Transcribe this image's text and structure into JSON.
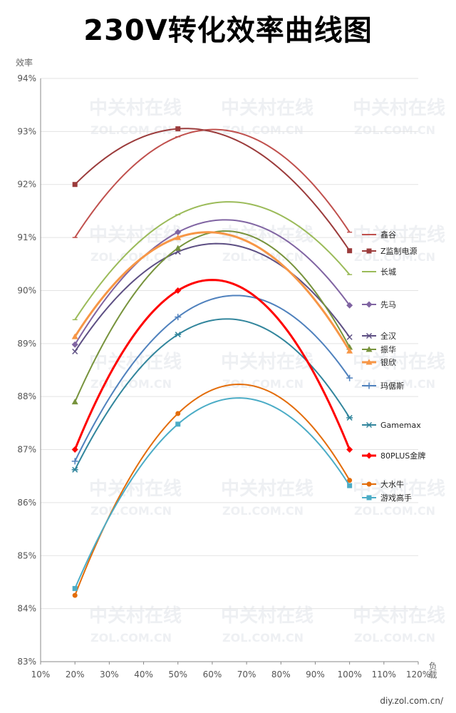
{
  "chart_data": {
    "type": "line",
    "title": "230V转化效率曲线图",
    "ylabel": "效率",
    "xlabel": "负载",
    "xlim": [
      10,
      120
    ],
    "ylim": [
      83,
      94
    ],
    "x_ticks": [
      "10%",
      "20%",
      "30%",
      "40%",
      "50%",
      "60%",
      "70%",
      "80%",
      "90%",
      "100%",
      "110%",
      "120%"
    ],
    "y_ticks": [
      "83%",
      "84%",
      "85%",
      "86%",
      "87%",
      "88%",
      "89%",
      "90%",
      "91%",
      "92%",
      "93%",
      "94%"
    ],
    "x": [
      20,
      50,
      100
    ],
    "series": [
      {
        "name": "鑫谷",
        "values": [
          91.0,
          92.9,
          91.1
        ],
        "color": "#c0504d",
        "marker": "dash",
        "width": 2
      },
      {
        "name": "Z监制电源",
        "values": [
          92.0,
          93.05,
          90.75
        ],
        "color": "#9b3b3b",
        "marker": "square",
        "width": 2
      },
      {
        "name": "长城",
        "values": [
          89.45,
          91.43,
          90.3
        ],
        "color": "#9bbb59",
        "marker": "dash",
        "width": 2
      },
      {
        "name": "先马",
        "values": [
          88.98,
          91.1,
          89.72
        ],
        "color": "#8064a2",
        "marker": "diamond",
        "width": 2
      },
      {
        "name": "全汉",
        "values": [
          88.85,
          90.73,
          89.12
        ],
        "color": "#5d4f83",
        "marker": "x",
        "width": 2
      },
      {
        "name": "振华",
        "values": [
          87.9,
          90.8,
          88.93
        ],
        "color": "#77933c",
        "marker": "triangle",
        "width": 2
      },
      {
        "name": "银欣",
        "values": [
          89.13,
          91.0,
          88.86
        ],
        "color": "#f79646",
        "marker": "triangle",
        "width": 3
      },
      {
        "name": "玛倨斯",
        "values": [
          86.78,
          89.5,
          88.35
        ],
        "color": "#4f81bd",
        "marker": "plus",
        "width": 2
      },
      {
        "name": "Gamemax",
        "values": [
          86.62,
          89.17,
          87.6
        ],
        "color": "#31859c",
        "marker": "star",
        "width": 2
      },
      {
        "name": "80PLUS金牌",
        "values": [
          87.0,
          90.0,
          87.0
        ],
        "color": "#ff0000",
        "marker": "diamond",
        "width": 3
      },
      {
        "name": "大水牛",
        "values": [
          84.25,
          87.68,
          86.42
        ],
        "color": "#e36c09",
        "marker": "circle",
        "width": 2
      },
      {
        "name": "游戏高手",
        "values": [
          84.38,
          87.48,
          86.32
        ],
        "color": "#4bacc6",
        "marker": "square",
        "width": 2
      }
    ],
    "legend_position": "right",
    "grid": true
  },
  "watermark": {
    "cn": "中关村在线",
    "en": "ZOL.COM.CN"
  },
  "footer": "diy.zol.com.cn/"
}
